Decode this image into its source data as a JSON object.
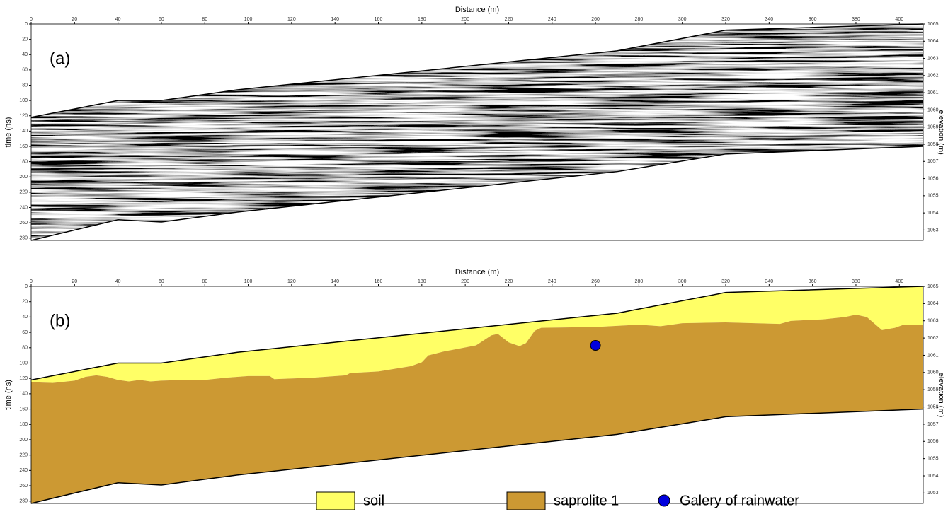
{
  "chart_data": [
    {
      "type": "radargram",
      "label": "(a)",
      "xlabel": "Distance (m)",
      "ylabel": "time (ns)",
      "y2label": "elevation (m)",
      "xlim": [
        0,
        411
      ],
      "xticks": [
        0,
        20,
        40,
        60,
        80,
        100,
        120,
        140,
        160,
        180,
        200,
        220,
        240,
        260,
        280,
        300,
        320,
        340,
        360,
        380,
        400
      ],
      "ylim": [
        0,
        283
      ],
      "yticks": [
        0,
        20,
        40,
        60,
        80,
        100,
        120,
        140,
        160,
        180,
        200,
        220,
        240,
        260,
        280
      ],
      "y2lim": [
        1052.4,
        1065
      ],
      "y2ticks": [
        1053,
        1054,
        1055,
        1056,
        1057,
        1058,
        1059,
        1060,
        1061,
        1062,
        1063,
        1064,
        1065
      ],
      "surface": {
        "x": [
          0,
          40,
          60,
          95,
          270,
          320,
          411
        ],
        "y": [
          122,
          100,
          100,
          86,
          35,
          8,
          0
        ]
      },
      "base": {
        "x": [
          0,
          40,
          60,
          95,
          270,
          320,
          411
        ],
        "y": [
          283,
          256,
          259,
          246,
          193,
          170,
          160
        ]
      }
    },
    {
      "type": "section",
      "label": "(b)",
      "xlabel": "Distance (m)",
      "ylabel": "time (ns)",
      "y2label": "elevation (m)",
      "xlim": [
        0,
        411
      ],
      "xticks": [
        0,
        20,
        40,
        60,
        80,
        100,
        120,
        140,
        160,
        180,
        200,
        220,
        240,
        260,
        280,
        300,
        320,
        340,
        360,
        380,
        400
      ],
      "ylim": [
        0,
        283
      ],
      "yticks": [
        0,
        20,
        40,
        60,
        80,
        100,
        120,
        140,
        160,
        180,
        200,
        220,
        240,
        260,
        280
      ],
      "y2lim": [
        1052.4,
        1065
      ],
      "y2ticks": [
        1053,
        1054,
        1055,
        1056,
        1057,
        1058,
        1059,
        1060,
        1061,
        1062,
        1063,
        1064,
        1065
      ],
      "surface": {
        "x": [
          0,
          40,
          60,
          95,
          270,
          320,
          411
        ],
        "y": [
          122,
          100,
          100,
          86,
          35,
          8,
          0
        ]
      },
      "interface": {
        "x": [
          0,
          10,
          20,
          25,
          30,
          35,
          40,
          45,
          50,
          55,
          60,
          70,
          80,
          90,
          100,
          110,
          112,
          130,
          145,
          147,
          160,
          175,
          180,
          183,
          190,
          205,
          212,
          215,
          220,
          225,
          228,
          232,
          235,
          260,
          280,
          290,
          300,
          320,
          345,
          350,
          365,
          375,
          380,
          385,
          392,
          398,
          402,
          411
        ],
        "y": [
          125,
          126,
          123,
          118,
          116,
          118,
          122,
          124,
          122,
          124,
          123,
          122,
          122,
          119,
          117,
          117,
          121,
          119,
          116,
          113,
          111,
          104,
          99,
          90,
          85,
          77,
          64,
          62,
          73,
          78,
          74,
          58,
          54,
          53,
          50,
          52,
          48,
          47,
          49,
          45,
          43,
          40,
          37,
          40,
          57,
          54,
          50,
          50
        ]
      },
      "base": {
        "x": [
          0,
          40,
          60,
          95,
          270,
          320,
          411
        ],
        "y": [
          283,
          256,
          259,
          246,
          193,
          170,
          160
        ]
      },
      "series": [
        {
          "name": "soil",
          "color": "#ffff66"
        },
        {
          "name": "saprolite 1",
          "color": "#cc9933"
        }
      ],
      "points": {
        "name": "Galery of rainwater",
        "color": "#0000dd",
        "x": [
          260
        ],
        "y": [
          77
        ]
      }
    }
  ]
}
